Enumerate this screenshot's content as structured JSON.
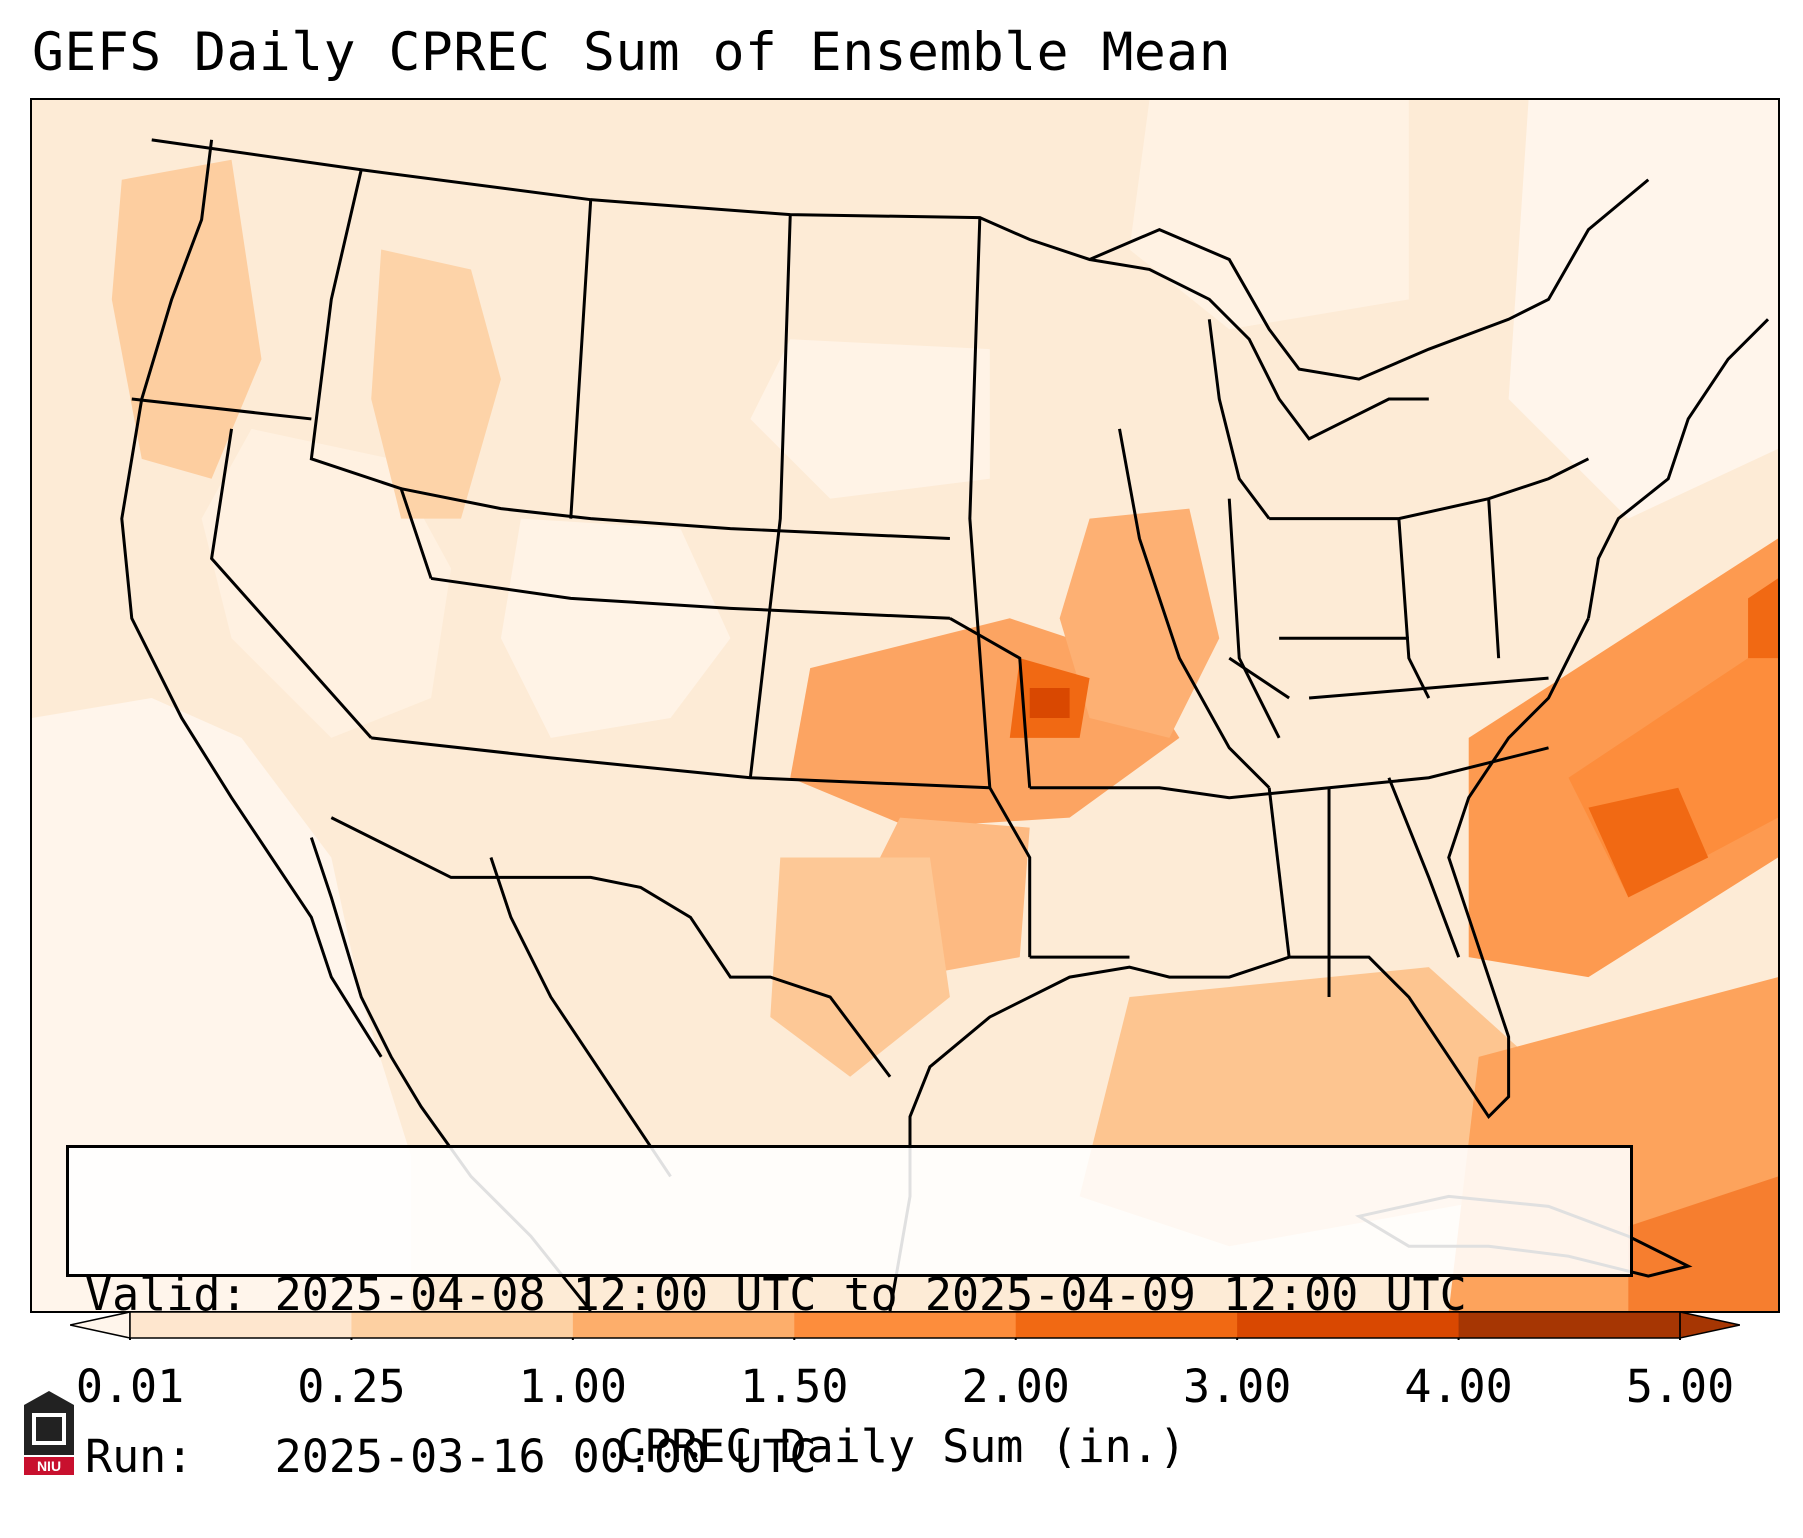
{
  "title": "GEFS Daily CPREC Sum of Ensemble Mean",
  "info": {
    "valid_label": "Valid:",
    "valid_value": "2025-04-08 12:00 UTC to 2025-04-09 12:00 UTC",
    "run_label": "Run:",
    "run_value": "2025-03-16 00:00 UTC"
  },
  "colorbar": {
    "label": "CPREC Daily Sum (in.)",
    "ticks": [
      "0.01",
      "0.25",
      "1.00",
      "1.50",
      "2.00",
      "3.00",
      "4.00",
      "5.00"
    ],
    "colors": [
      "#fff5eb",
      "#fee6ce",
      "#fdd0a2",
      "#fdae6b",
      "#fd8d3c",
      "#f16913",
      "#d94801",
      "#a63603"
    ]
  },
  "logo": {
    "text": "NIU",
    "colors": {
      "tower": "#222222",
      "banner": "#c8102e"
    }
  }
}
